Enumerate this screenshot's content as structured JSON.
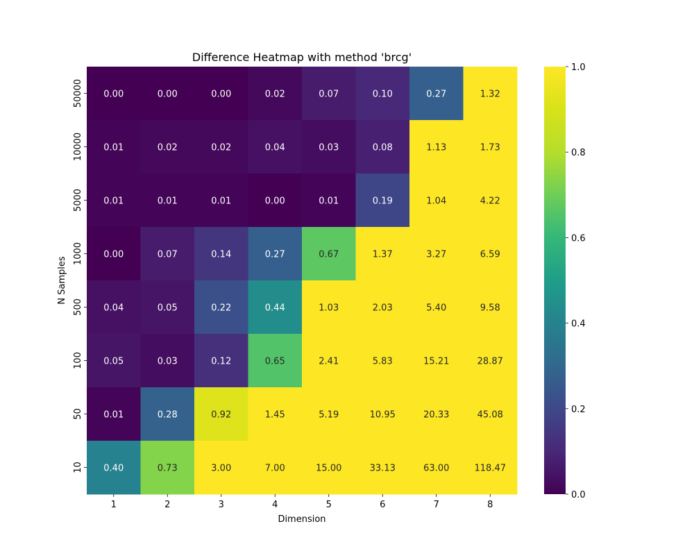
{
  "chart_data": {
    "type": "heatmap",
    "title": "Difference Heatmap with method 'brcg'",
    "xlabel": "Dimension",
    "ylabel": "N Samples",
    "x_categories": [
      "1",
      "2",
      "3",
      "4",
      "5",
      "6",
      "7",
      "8"
    ],
    "y_categories": [
      "50000",
      "10000",
      "5000",
      "1000",
      "500",
      "100",
      "50",
      "10"
    ],
    "values": [
      [
        0.0,
        0.0,
        0.0,
        0.02,
        0.07,
        0.1,
        0.27,
        1.32
      ],
      [
        0.01,
        0.02,
        0.02,
        0.04,
        0.03,
        0.08,
        1.13,
        1.73
      ],
      [
        0.01,
        0.01,
        0.01,
        0.0,
        0.01,
        0.19,
        1.04,
        4.22
      ],
      [
        0.0,
        0.07,
        0.14,
        0.27,
        0.67,
        1.37,
        3.27,
        6.59
      ],
      [
        0.04,
        0.05,
        0.22,
        0.44,
        1.03,
        2.03,
        5.4,
        9.58
      ],
      [
        0.05,
        0.03,
        0.12,
        0.65,
        2.41,
        5.83,
        15.21,
        28.87
      ],
      [
        0.01,
        0.28,
        0.92,
        1.45,
        5.19,
        10.95,
        20.33,
        45.08
      ],
      [
        0.4,
        0.73,
        3.0,
        7.0,
        15.0,
        33.13,
        63.0,
        118.47
      ]
    ],
    "value_format_decimals": 2,
    "colormap": "viridis",
    "color_range": [
      0.0,
      1.0
    ],
    "colorbar": {
      "ticks": [
        0.0,
        0.2,
        0.4,
        0.6,
        0.8,
        1.0
      ],
      "tick_labels": [
        "0.0",
        "0.2",
        "0.4",
        "0.6",
        "0.8",
        "1.0"
      ],
      "placement": "right"
    },
    "grid": false,
    "legend": "none"
  }
}
